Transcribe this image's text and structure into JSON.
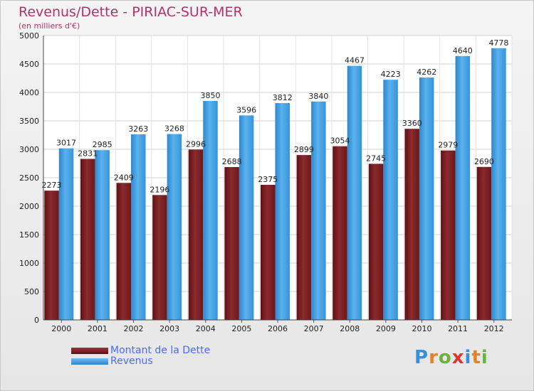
{
  "title": "Revenus/Dette - PIRIAC-SUR-MER",
  "subtitle": "(en milliers d'€)",
  "colors": {
    "debt": "#7a1f22",
    "revenue": "#3d9ee3",
    "title": "#b0336a",
    "legend_text": "#4b6cf0"
  },
  "legend": {
    "debt_label": "Montant de la Dette",
    "revenue_label": "Revenus"
  },
  "logo": {
    "text": "Proxiti",
    "letter_colors": [
      "#3a8fd6",
      "#e0832a",
      "#69b33c",
      "#d9382f",
      "#3a8fd6",
      "#e0832a",
      "#69b33c"
    ]
  },
  "chart_data": {
    "type": "bar",
    "categories": [
      "2000",
      "2001",
      "2002",
      "2003",
      "2004",
      "2005",
      "2006",
      "2007",
      "2008",
      "2009",
      "2010",
      "2011",
      "2012"
    ],
    "series": [
      {
        "name": "Montant de la Dette",
        "values": [
          2273,
          2831,
          2409,
          2196,
          2996,
          2688,
          2375,
          2899,
          3054,
          2745,
          3360,
          2979,
          2690
        ]
      },
      {
        "name": "Revenus",
        "values": [
          3017,
          2985,
          3263,
          3268,
          3850,
          3596,
          3812,
          3840,
          4467,
          4223,
          4262,
          4640,
          4778
        ]
      }
    ],
    "ylim": [
      0,
      5000
    ],
    "yticks": [
      0,
      500,
      1000,
      1500,
      2000,
      2500,
      3000,
      3500,
      4000,
      4500,
      5000
    ],
    "grid": true,
    "legend_position": "bottom-left",
    "data_labels": [
      [
        "2273",
        "2831",
        "2409",
        "2196",
        "2996",
        "2688",
        "2375",
        "2899",
        "3054",
        "2745",
        "3360",
        "2979",
        "2690"
      ],
      [
        "3017",
        "2985",
        "3263",
        "3268",
        "3850",
        "3596",
        "3812",
        "3840",
        "4467",
        "4223",
        "4262",
        "4640",
        "4778"
      ]
    ]
  }
}
